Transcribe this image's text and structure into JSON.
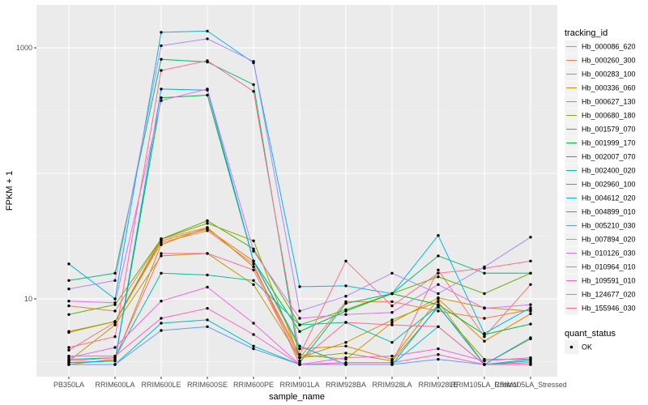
{
  "chart_data": {
    "type": "line",
    "title": "",
    "xlabel": "sample_name",
    "ylabel": "FPKM + 1",
    "y_scale": "log10",
    "ylim": [
      2.4,
      2200
    ],
    "yticks": [
      {
        "value": 10,
        "label": "10"
      },
      {
        "value": 1000,
        "label": "1000"
      }
    ],
    "categories": [
      "PB350LA",
      "RRIM600LA",
      "RRIM600LE",
      "RRIM600SE",
      "RRIM600PE",
      "RRIM901LA",
      "RRIM928BA",
      "RRIM928LA",
      "RRIM928LE",
      "RRIM105LA_Control",
      "RRIM105LA_Stressed"
    ],
    "grid": true,
    "legend": {
      "position": "right",
      "color_title": "tracking_id",
      "shape_title": "quant_status",
      "shape_entries": [
        "OK"
      ]
    },
    "series": [
      {
        "name": "Hb_000086_620",
        "color": "#F8766D",
        "values": [
          3.9,
          6.5,
          28,
          35,
          19,
          3.0,
          3.1,
          3.1,
          17,
          5.0,
          13
        ]
      },
      {
        "name": "Hb_000260_300",
        "color": "#F07F4F",
        "values": [
          8.8,
          8.0,
          30,
          37,
          18,
          3.4,
          9.5,
          9.5,
          8.0,
          7.0,
          8.2
        ]
      },
      {
        "name": "Hb_000283_100",
        "color": "#E58700",
        "values": [
          5.5,
          6.6,
          29,
          36,
          20,
          4.0,
          4.2,
          3.3,
          10.0,
          4.6,
          7.6
        ]
      },
      {
        "name": "Hb_000336_060",
        "color": "#D39200",
        "values": [
          3.0,
          3.3,
          27,
          37,
          18,
          3.6,
          3.3,
          6.5,
          10.2,
          8.5,
          8.0
        ]
      },
      {
        "name": "Hb_000627_130",
        "color": "#B79F00",
        "values": [
          3.2,
          6.2,
          22,
          23,
          13,
          3.4,
          4.5,
          6.8,
          9.5,
          3.0,
          4.8
        ]
      },
      {
        "name": "Hb_000680_180",
        "color": "#93AA00",
        "values": [
          5.4,
          6.6,
          30,
          40,
          29,
          3.4,
          3.7,
          3.2,
          8.6,
          3.3,
          3.3
        ]
      },
      {
        "name": "Hb_001579_070",
        "color": "#5EB300",
        "values": [
          7.5,
          9.0,
          30,
          42,
          25,
          6.2,
          8.2,
          11,
          15,
          11,
          16
        ]
      },
      {
        "name": "Hb_001999_170",
        "color": "#00BA38",
        "values": [
          3.1,
          3.2,
          400,
          420,
          20,
          5.5,
          8.0,
          11,
          9.0,
          5.2,
          6.3
        ]
      },
      {
        "name": "Hb_002007_070",
        "color": "#00BF74",
        "values": [
          14,
          16,
          810,
          770,
          510,
          3.1,
          9.2,
          11,
          22,
          16,
          16
        ]
      },
      {
        "name": "Hb_002400_020",
        "color": "#00C19F",
        "values": [
          3.3,
          3.4,
          16,
          15.5,
          14,
          6.2,
          6.5,
          4.5,
          8.8,
          3.0,
          3.3
        ]
      },
      {
        "name": "Hb_002960_100",
        "color": "#00BFC4",
        "values": [
          3.0,
          3.0,
          6.4,
          6.8,
          4.2,
          3.0,
          3.0,
          3.0,
          6.0,
          3.0,
          3.2
        ]
      },
      {
        "name": "Hb_004612_020",
        "color": "#00B8E7",
        "values": [
          19,
          10,
          1330,
          1360,
          760,
          12.5,
          12.7,
          11,
          32,
          5.3,
          8.5
        ]
      },
      {
        "name": "Hb_004899_010",
        "color": "#00A9FF",
        "values": [
          3.1,
          3.2,
          470,
          460,
          20,
          4.2,
          3.0,
          3.0,
          8.8,
          3.0,
          4.9
        ]
      },
      {
        "name": "Hb_005210_030",
        "color": "#619CFF",
        "values": [
          3.0,
          3.0,
          5.6,
          6.0,
          4.0,
          3.0,
          3.0,
          3.0,
          3.3,
          3.0,
          3.0
        ]
      },
      {
        "name": "Hb_007894_020",
        "color": "#AE87FF",
        "values": [
          12,
          14,
          1040,
          1180,
          780,
          8.0,
          10.5,
          16,
          11,
          18,
          31
        ]
      },
      {
        "name": "Hb_010126_030",
        "color": "#DB72FB",
        "values": [
          9.6,
          9.3,
          380,
          470,
          24,
          7.0,
          7.5,
          7.8,
          13,
          8.4,
          9.0
        ]
      },
      {
        "name": "Hb_010964_010",
        "color": "#F564E3",
        "values": [
          3.4,
          4.1,
          9.6,
          12.4,
          6.4,
          3.0,
          3.4,
          3.5,
          4.0,
          3.2,
          3.4
        ]
      },
      {
        "name": "Hb_109591_010",
        "color": "#FF61C3",
        "values": [
          3.5,
          3.5,
          7.0,
          8.4,
          5.2,
          3.0,
          3.1,
          3.1,
          3.6,
          3.0,
          3.1
        ]
      },
      {
        "name": "Hb_124677_020",
        "color": "#FF6C91",
        "values": [
          4.1,
          5.0,
          660,
          790,
          450,
          3.6,
          20,
          8.8,
          16,
          17.5,
          20
        ]
      },
      {
        "name": "Hb_155946_030",
        "color": "#FF6A98",
        "values": [
          3.2,
          3.4,
          23,
          23,
          17,
          3.2,
          6.5,
          6.2,
          6.0,
          3.0,
          3.0
        ]
      }
    ]
  }
}
